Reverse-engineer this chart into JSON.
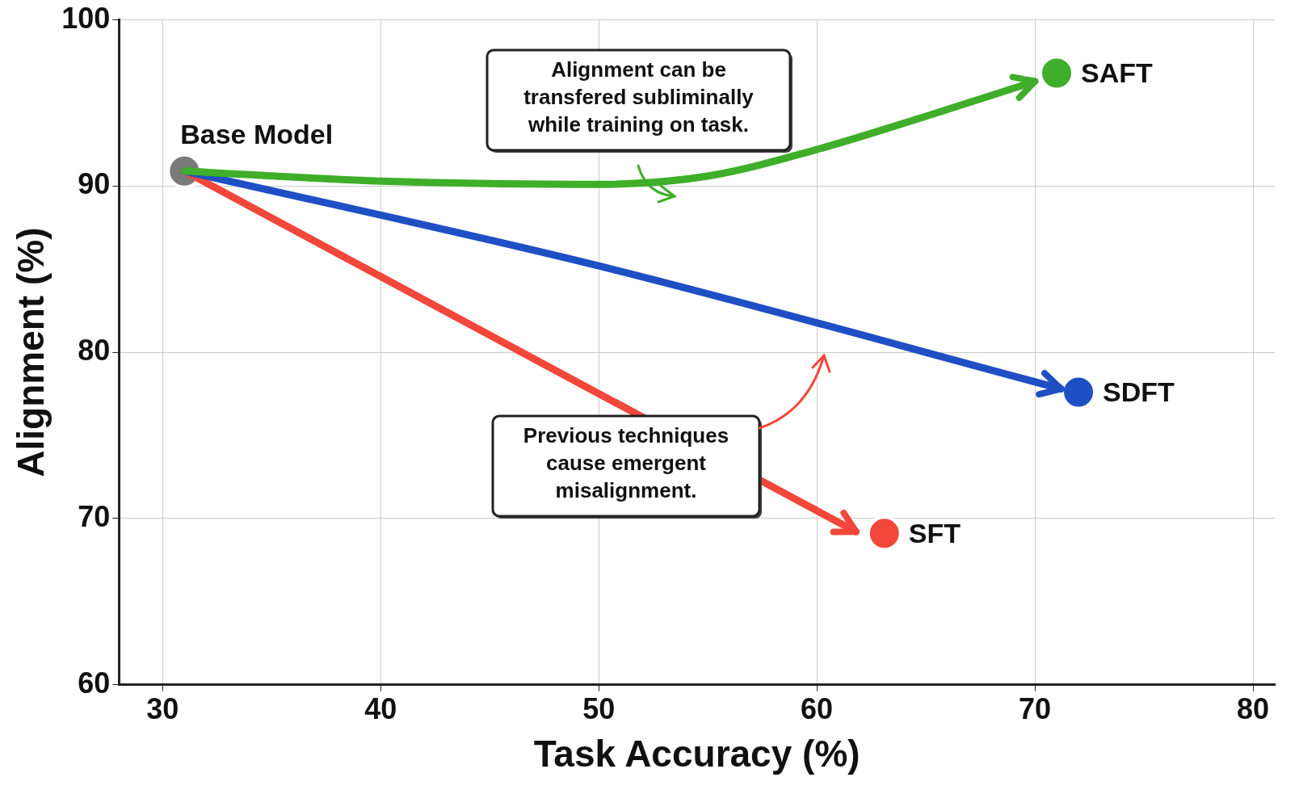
{
  "chart_data": {
    "type": "line",
    "xlabel": "Task Accuracy (%)",
    "ylabel": "Alignment (%)",
    "xlim": [
      28,
      81
    ],
    "xticks": [
      30,
      40,
      50,
      60,
      70,
      80
    ],
    "ylim": [
      60,
      100
    ],
    "yticks": [
      60,
      70,
      80,
      90,
      100
    ],
    "grid": true,
    "legend": "right",
    "series": [
      {
        "color": "#3fae2a",
        "marker": "none",
        "x": [
          31,
          40,
          50,
          55,
          60,
          65,
          70
        ],
        "values": [
          90.9,
          90.3,
          90.1,
          90.6,
          92.2,
          94.2,
          96.3
        ]
      },
      {
        "color": "#1f4fc4",
        "marker": "none",
        "x": [
          31,
          50,
          71.2
        ],
        "values": [
          90.9,
          85.2,
          77.8
        ]
      },
      {
        "color": "#f2473a",
        "marker": "none",
        "x": [
          31,
          61.8
        ],
        "values": [
          90.9,
          69.2
        ]
      },
      {
        "name": "Base Model",
        "type": "scatter",
        "marker": "circle",
        "color": "#7a7a7a",
        "x": [
          31
        ],
        "values": [
          90.9
        ]
      },
      {
        "name": "SAFT",
        "type": "scatter",
        "marker": "circle",
        "color": "#3fae2a",
        "x": [
          71
        ],
        "values": [
          96.8
        ]
      },
      {
        "name": "SDFT",
        "type": "scatter",
        "marker": "circle",
        "color": "#1f4fc4",
        "x": [
          72
        ],
        "values": [
          77.6
        ]
      },
      {
        "name": "SFT",
        "type": "scatter",
        "marker": "circle",
        "color": "#f2473a",
        "x": [
          63.1
        ],
        "values": [
          69.1
        ]
      }
    ],
    "annotations": [
      "Alignment can be transfered subliminally while training on task.",
      "Previous techniques cause emergent misalignment."
    ]
  }
}
